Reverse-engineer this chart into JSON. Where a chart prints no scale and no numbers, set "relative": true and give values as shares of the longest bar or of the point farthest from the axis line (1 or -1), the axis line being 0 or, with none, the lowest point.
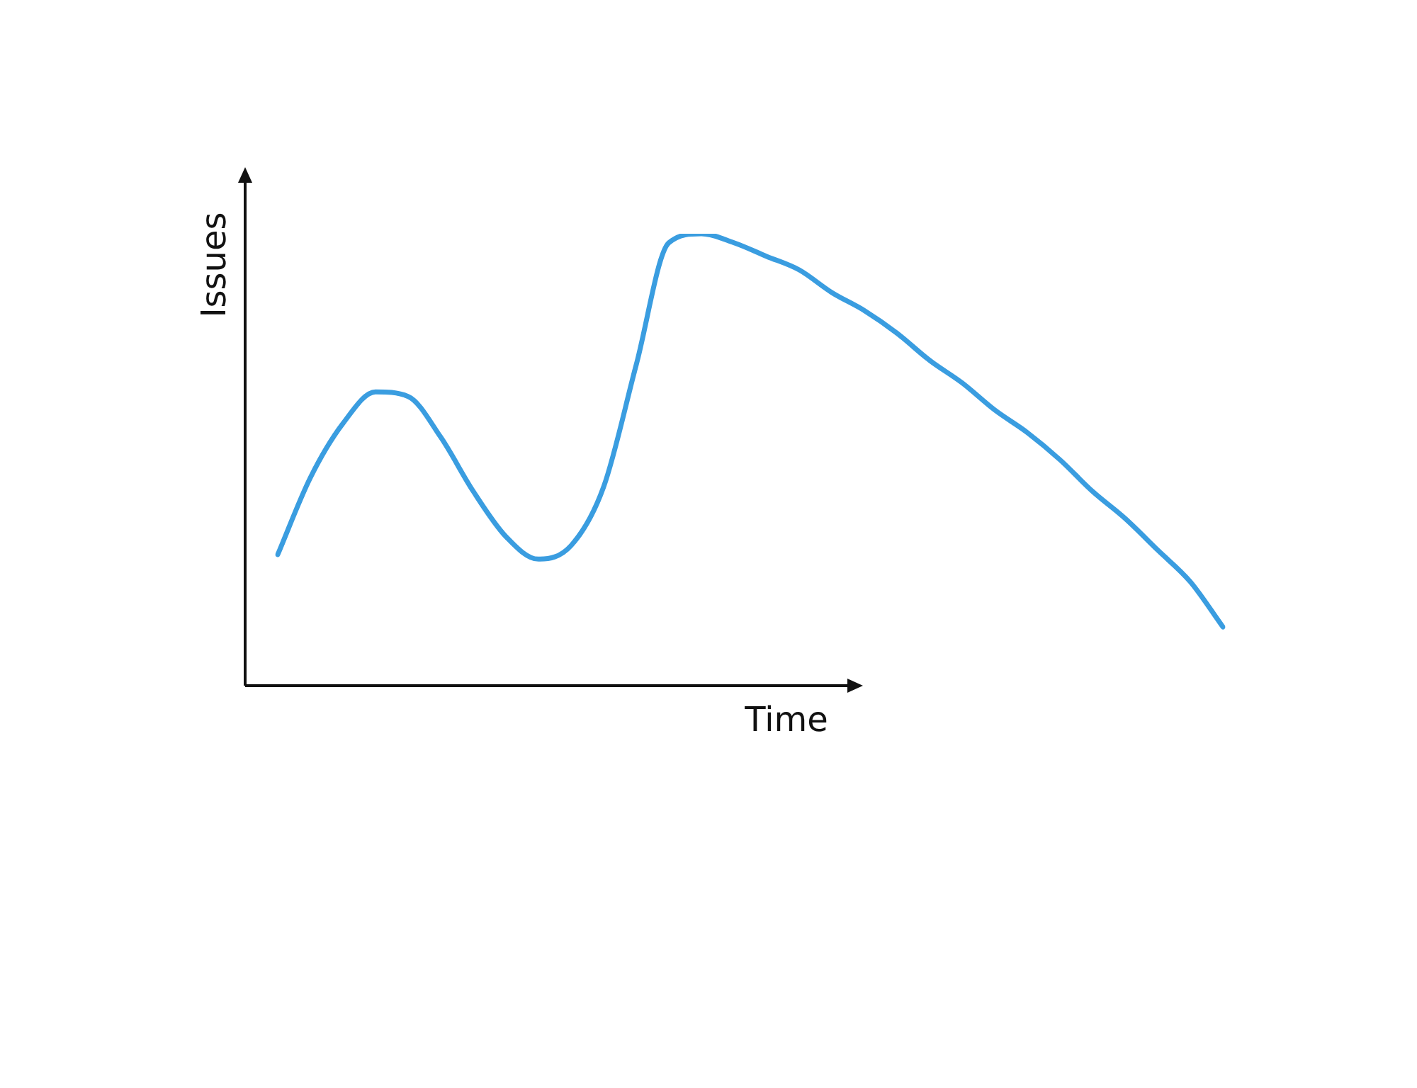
{
  "chart_data": {
    "type": "line",
    "relative": true,
    "xlabel": "Time",
    "ylabel": "Issues",
    "marker": "none",
    "categories": [
      null,
      null,
      null,
      null,
      null,
      null,
      null,
      null,
      null,
      null,
      null,
      null,
      null,
      null,
      null,
      null,
      null,
      null,
      null,
      null,
      null,
      null,
      null,
      null,
      null,
      null,
      null,
      null,
      null,
      null
    ],
    "series": [
      {
        "color": "#3a9de0",
        "values": [
          0.29,
          0.46,
          0.58,
          0.65,
          0.64,
          0.55,
          0.43,
          0.33,
          0.28,
          0.31,
          0.44,
          0.71,
          0.98,
          1.0,
          0.98,
          0.95,
          0.92,
          0.87,
          0.83,
          0.78,
          0.72,
          0.67,
          0.61,
          0.56,
          0.5,
          0.43,
          0.37,
          0.3,
          0.23,
          0.13
        ]
      }
    ]
  }
}
